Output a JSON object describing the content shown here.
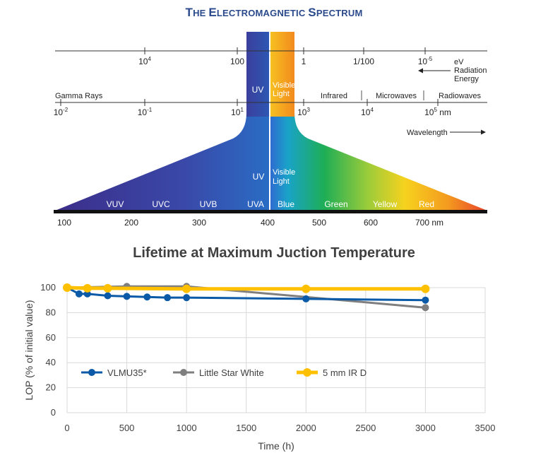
{
  "spectrum": {
    "title_parts": [
      {
        "big": "T",
        "small": "HE "
      },
      {
        "big": "E",
        "small": "LECTROMAGNETIC "
      },
      {
        "big": "S",
        "small": "PECTRUM"
      }
    ],
    "energy_ticks": [
      {
        "base": "10",
        "exp": "4"
      },
      {
        "base": "100",
        "exp": ""
      },
      {
        "base": "1",
        "exp": ""
      },
      {
        "base": "1/100",
        "exp": ""
      },
      {
        "base": "10",
        "exp": "-5"
      }
    ],
    "energy_label": [
      "eV",
      "Radiation",
      "Energy"
    ],
    "upper_band_labels": [
      "Gamma Rays",
      "UV",
      "Visible",
      "Light",
      "Infrared",
      "Microwaves",
      "Radiowaves"
    ],
    "wavelength_ticks": [
      {
        "base": "10",
        "exp": "-2",
        "unit": ""
      },
      {
        "base": "10",
        "exp": "-1",
        "unit": ""
      },
      {
        "base": "10",
        "exp": "1",
        "unit": ""
      },
      {
        "base": "10",
        "exp": "3",
        "unit": ""
      },
      {
        "base": "10",
        "exp": "4",
        "unit": ""
      },
      {
        "base": "10",
        "exp": "5",
        "unit": "nm"
      }
    ],
    "wavelength_label": "Wavelength",
    "lower_uv_label": "UV",
    "lower_visible_label": [
      "Visible",
      "Light"
    ],
    "band_labels": [
      "VUV",
      "UVC",
      "UVB",
      "UVA",
      "Blue",
      "Green",
      "Yellow",
      "Red"
    ],
    "nm_ticks": [
      "100",
      "200",
      "300",
      "400",
      "500",
      "600",
      "700 nm"
    ]
  },
  "chart_data": {
    "type": "line",
    "title": "Lifetime at Maximum Juction Temperature",
    "xlabel": "Time (h)",
    "ylabel": "LOP (% of initial value)",
    "xlim": [
      0,
      3500
    ],
    "ylim": [
      0,
      100
    ],
    "xticks": [
      "0",
      "500",
      "1000",
      "1500",
      "2000",
      "2500",
      "3000",
      "3500"
    ],
    "yticks": [
      "0",
      "20",
      "40",
      "60",
      "80",
      "100"
    ],
    "grid": true,
    "legend_position": "middle-left",
    "series": [
      {
        "name": "VLMU35*",
        "color": "#0a5aa8",
        "x": [
          0,
          100,
          170,
          340,
          500,
          670,
          840,
          1000,
          2000,
          3000
        ],
        "y": [
          100,
          95,
          95,
          93.5,
          93,
          92.5,
          92,
          92,
          91,
          90
        ]
      },
      {
        "name": "Little Star White",
        "color": "#7f7f7f",
        "x": [
          0,
          500,
          1000,
          3000
        ],
        "y": [
          100,
          101,
          101,
          84
        ]
      },
      {
        "name": "5 mm IR  D",
        "color": "#ffc000",
        "x": [
          0,
          170,
          340,
          1000,
          2000,
          3000
        ],
        "y": [
          100,
          99.5,
          99.5,
          99,
          99,
          99
        ]
      }
    ]
  }
}
